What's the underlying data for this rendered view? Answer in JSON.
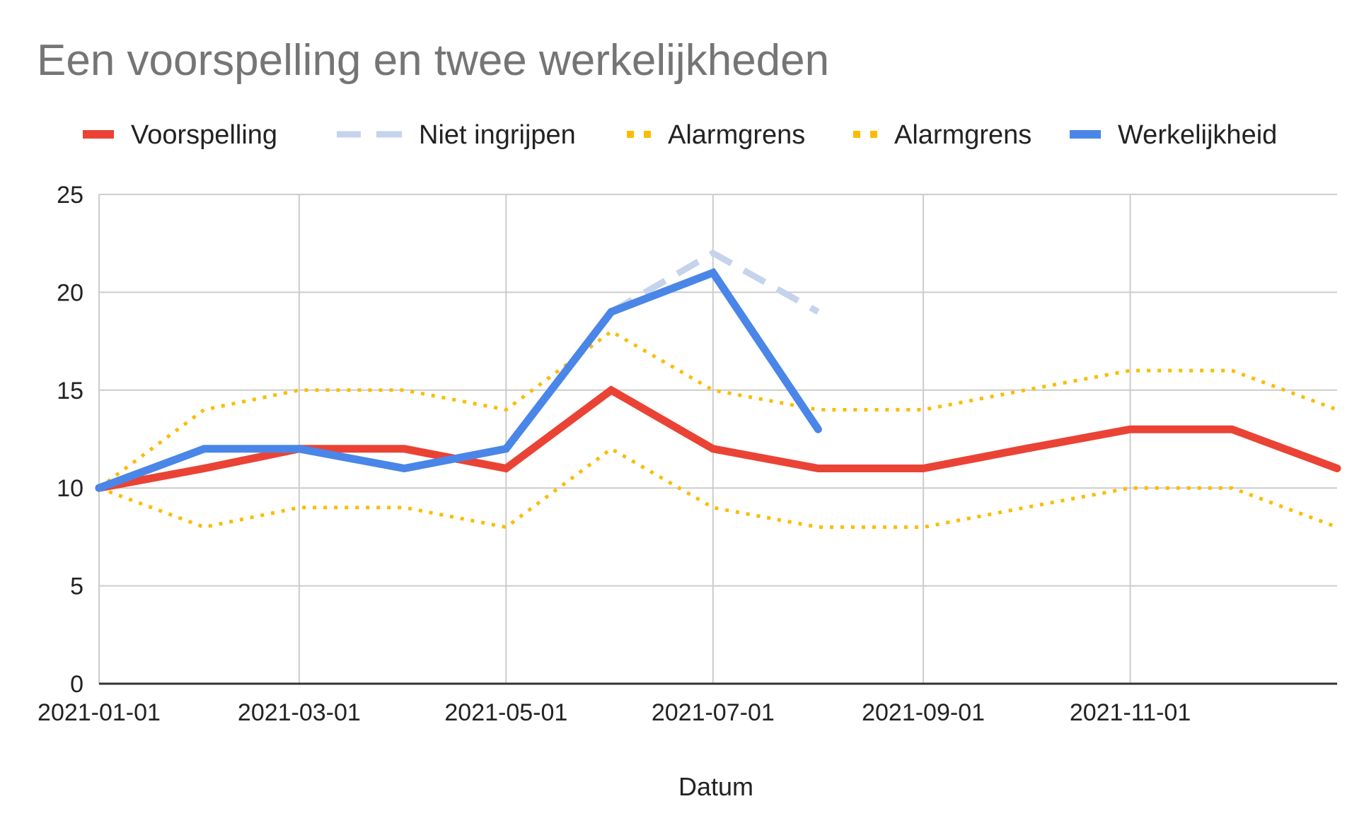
{
  "chart_data": {
    "type": "line",
    "title": "Een voorspelling en twee werkelijkheden",
    "xlabel": "Datum",
    "ylabel": "",
    "x": [
      "2021-01-01",
      "2021-02-01",
      "2021-03-01",
      "2021-04-01",
      "2021-05-01",
      "2021-06-01",
      "2021-07-01",
      "2021-08-01",
      "2021-09-01",
      "2021-10-01",
      "2021-11-01",
      "2021-12-01",
      "2022-01-01"
    ],
    "x_tick_labels": [
      "2021-01-01",
      "2021-03-01",
      "2021-05-01",
      "2021-07-01",
      "2021-09-01",
      "2021-11-01"
    ],
    "ylim": [
      0,
      25
    ],
    "y_ticks": [
      0,
      5,
      10,
      15,
      20,
      25
    ],
    "grid": true,
    "legend_position": "top",
    "series": [
      {
        "name": "Voorspelling",
        "color": "#ea4335",
        "style": "solid",
        "values": [
          10,
          11,
          12,
          12,
          11,
          15,
          12,
          11,
          11,
          12,
          13,
          13,
          11
        ]
      },
      {
        "name": "Niet ingrijpen",
        "color": "#c6d3ec",
        "style": "dashed",
        "values": [
          null,
          null,
          null,
          null,
          null,
          19,
          22,
          19,
          null,
          null,
          null,
          null,
          null
        ]
      },
      {
        "name": "Alarmgrens",
        "color": "#fbbc04",
        "style": "dotted",
        "values": [
          10,
          14,
          15,
          15,
          14,
          18,
          15,
          14,
          14,
          15,
          16,
          16,
          14
        ]
      },
      {
        "name": "Alarmgrens",
        "color": "#fbbc04",
        "style": "dotted",
        "values": [
          10,
          8,
          9,
          9,
          8,
          12,
          9,
          8,
          8,
          9,
          10,
          10,
          8
        ]
      },
      {
        "name": "Werkelijkheid",
        "color": "#4a86e8",
        "style": "solid",
        "values": [
          10,
          12,
          12,
          11,
          12,
          19,
          21,
          13,
          null,
          null,
          null,
          null,
          null
        ]
      }
    ]
  }
}
